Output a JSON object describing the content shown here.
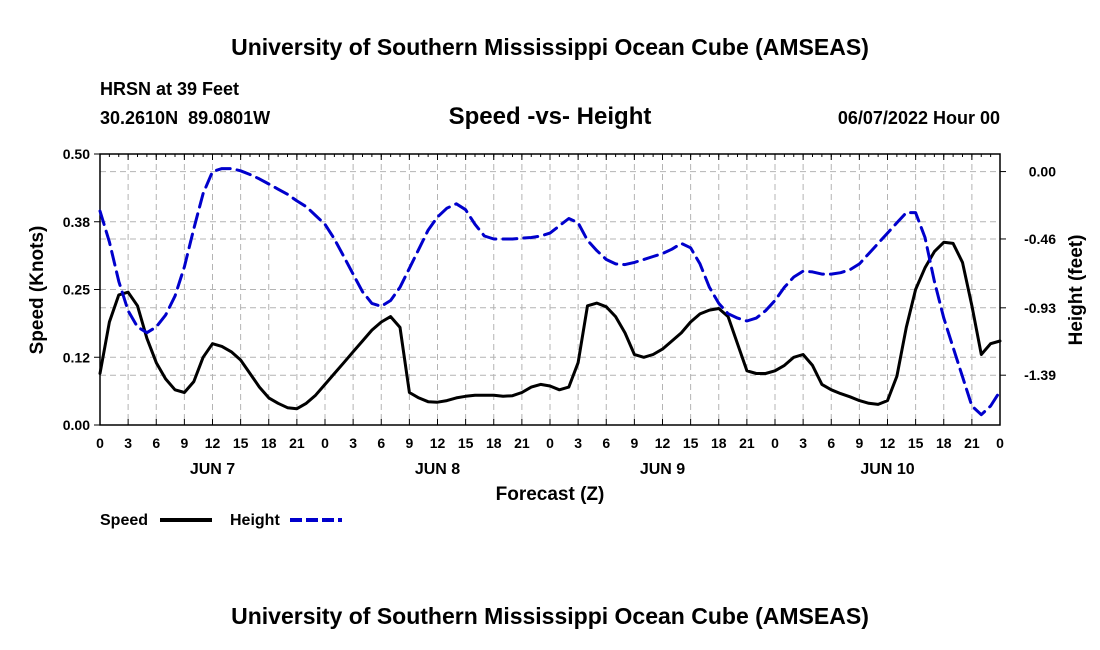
{
  "header": {
    "title": "University of Southern Mississippi Ocean Cube (AMSEAS)",
    "station": "HRSN at 39 Feet",
    "coords": "30.2610N  89.0801W",
    "date": "06/07/2022 Hour 00",
    "footer_title": "University of Southern Mississippi Ocean Cube (AMSEAS)"
  },
  "chart_data": {
    "type": "line",
    "title": "Speed -vs- Height",
    "xlabel": "Forecast (Z)",
    "ylabel_left": "Speed (Knots)",
    "ylabel_right": "Height (feet)",
    "xlim": [
      0,
      96
    ],
    "ylim_left": [
      0,
      0.5
    ],
    "ylim_right": [
      -1.73,
      0.12
    ],
    "grid": true,
    "x_tick_labels": [
      "0",
      "3",
      "6",
      "9",
      "12",
      "15",
      "18",
      "21",
      "0",
      "3",
      "6",
      "9",
      "12",
      "15",
      "18",
      "21",
      "0",
      "3",
      "6",
      "9",
      "12",
      "15",
      "18",
      "21",
      "0",
      "3",
      "6",
      "9",
      "12",
      "15",
      "18",
      "21",
      "0"
    ],
    "left_tick_values": [
      0,
      0.125,
      0.25,
      0.375,
      0.5
    ],
    "left_tick_labels": [
      "0.00",
      "0.12",
      "0.25",
      "0.38",
      "0.50"
    ],
    "right_tick_values": [
      0,
      -0.46,
      -0.93,
      -1.39
    ],
    "right_tick_labels": [
      "0.00",
      "-0.46",
      "-0.93",
      "-1.39"
    ],
    "day_labels": [
      {
        "label": "JUN 7",
        "hour": 12
      },
      {
        "label": "JUN 8",
        "hour": 36
      },
      {
        "label": "JUN 9",
        "hour": 60
      },
      {
        "label": "JUN 10",
        "hour": 84
      }
    ],
    "series": [
      {
        "name": "Speed",
        "axis": "left",
        "color": "#000000",
        "dashed": false,
        "x": [
          0,
          1,
          2,
          3,
          4,
          5,
          6,
          7,
          8,
          9,
          10,
          11,
          12,
          13,
          14,
          15,
          16,
          17,
          18,
          19,
          20,
          21,
          22,
          23,
          24,
          25,
          26,
          27,
          28,
          29,
          30,
          31,
          32,
          33,
          34,
          35,
          36,
          37,
          38,
          39,
          40,
          41,
          42,
          43,
          44,
          45,
          46,
          47,
          48,
          49,
          50,
          51,
          52,
          53,
          54,
          55,
          56,
          57,
          58,
          59,
          60,
          61,
          62,
          63,
          64,
          65,
          66,
          67,
          68,
          69,
          70,
          71,
          72,
          73,
          74,
          75,
          76,
          77,
          78,
          79,
          80,
          81,
          82,
          83,
          84,
          85,
          86,
          87,
          88,
          89,
          90,
          91,
          92,
          93,
          94,
          95,
          96
        ],
        "y": [
          0.095,
          0.19,
          0.24,
          0.245,
          0.22,
          0.16,
          0.115,
          0.085,
          0.065,
          0.06,
          0.08,
          0.125,
          0.15,
          0.145,
          0.135,
          0.12,
          0.095,
          0.07,
          0.05,
          0.04,
          0.032,
          0.03,
          0.04,
          0.055,
          0.075,
          0.095,
          0.115,
          0.135,
          0.155,
          0.175,
          0.19,
          0.2,
          0.18,
          0.06,
          0.05,
          0.043,
          0.042,
          0.045,
          0.05,
          0.053,
          0.055,
          0.055,
          0.055,
          0.053,
          0.054,
          0.06,
          0.07,
          0.075,
          0.072,
          0.065,
          0.07,
          0.115,
          0.22,
          0.225,
          0.218,
          0.2,
          0.17,
          0.13,
          0.125,
          0.13,
          0.14,
          0.155,
          0.17,
          0.19,
          0.205,
          0.212,
          0.215,
          0.2,
          0.15,
          0.1,
          0.095,
          0.095,
          0.1,
          0.11,
          0.125,
          0.13,
          0.11,
          0.075,
          0.065,
          0.058,
          0.052,
          0.045,
          0.04,
          0.038,
          0.045,
          0.09,
          0.18,
          0.25,
          0.29,
          0.32,
          0.337,
          0.335,
          0.3,
          0.22,
          0.13,
          0.15,
          0.155
        ]
      },
      {
        "name": "Height",
        "axis": "right",
        "color": "#0000cc",
        "dashed": true,
        "x": [
          0,
          1,
          2,
          3,
          4,
          5,
          6,
          7,
          8,
          9,
          10,
          11,
          12,
          13,
          14,
          15,
          16,
          17,
          18,
          19,
          20,
          21,
          22,
          23,
          24,
          25,
          26,
          27,
          28,
          29,
          30,
          31,
          32,
          33,
          34,
          35,
          36,
          37,
          38,
          39,
          40,
          41,
          42,
          43,
          44,
          45,
          46,
          47,
          48,
          49,
          50,
          51,
          52,
          53,
          54,
          55,
          56,
          57,
          58,
          59,
          60,
          61,
          62,
          63,
          64,
          65,
          66,
          67,
          68,
          69,
          70,
          71,
          72,
          73,
          74,
          75,
          76,
          77,
          78,
          79,
          80,
          81,
          82,
          83,
          84,
          85,
          86,
          87,
          88,
          89,
          90,
          91,
          92,
          93,
          94,
          95,
          96
        ],
        "y": [
          -0.27,
          -0.48,
          -0.75,
          -0.95,
          -1.06,
          -1.1,
          -1.06,
          -0.98,
          -0.85,
          -0.65,
          -0.39,
          -0.15,
          0.0,
          0.02,
          0.02,
          0.005,
          -0.02,
          -0.05,
          -0.085,
          -0.12,
          -0.155,
          -0.2,
          -0.24,
          -0.3,
          -0.36,
          -0.46,
          -0.58,
          -0.7,
          -0.82,
          -0.9,
          -0.92,
          -0.88,
          -0.79,
          -0.66,
          -0.53,
          -0.4,
          -0.31,
          -0.25,
          -0.22,
          -0.26,
          -0.36,
          -0.44,
          -0.46,
          -0.46,
          -0.46,
          -0.455,
          -0.45,
          -0.44,
          -0.42,
          -0.37,
          -0.32,
          -0.35,
          -0.47,
          -0.54,
          -0.6,
          -0.63,
          -0.635,
          -0.62,
          -0.6,
          -0.58,
          -0.56,
          -0.53,
          -0.49,
          -0.52,
          -0.63,
          -0.79,
          -0.9,
          -0.97,
          -1.0,
          -1.02,
          -1.0,
          -0.95,
          -0.88,
          -0.79,
          -0.72,
          -0.68,
          -0.685,
          -0.7,
          -0.7,
          -0.69,
          -0.67,
          -0.63,
          -0.56,
          -0.49,
          -0.42,
          -0.35,
          -0.28,
          -0.28,
          -0.45,
          -0.75,
          -1.0,
          -1.2,
          -1.4,
          -1.6,
          -1.66,
          -1.6,
          -1.5
        ]
      }
    ],
    "legend": {
      "position": "bottom-left",
      "entries": [
        {
          "label": "Speed",
          "color": "#000000",
          "dashed": false
        },
        {
          "label": "Height",
          "color": "#0000cc",
          "dashed": true
        }
      ]
    }
  }
}
